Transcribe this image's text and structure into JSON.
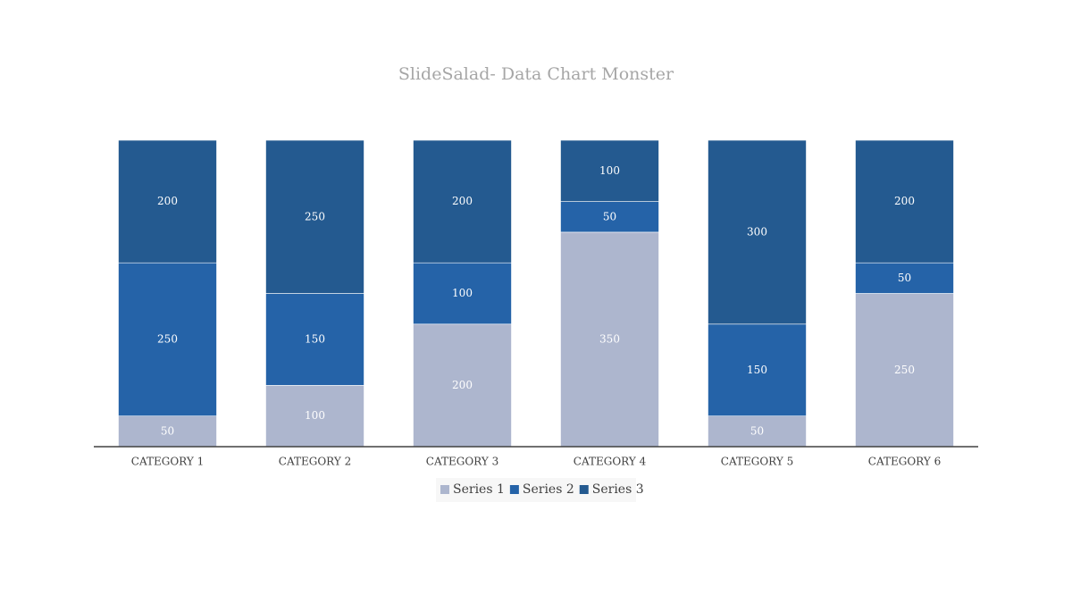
{
  "chart_data": {
    "type": "stacked_bar",
    "title": "SlideSalad- Data Chart Monster",
    "categories": [
      "CATEGORY 1",
      "CATEGORY 2",
      "CATEGORY 3",
      "CATEGORY 4",
      "CATEGORY 5",
      "CATEGORY 6"
    ],
    "series": [
      {
        "name": "Series 1",
        "color": "#adb6ce",
        "values": [
          50,
          100,
          200,
          350,
          50,
          250
        ]
      },
      {
        "name": "Series 2",
        "color": "#2563a8",
        "values": [
          250,
          150,
          100,
          50,
          150,
          50
        ]
      },
      {
        "name": "Series 3",
        "color": "#245a90",
        "values": [
          200,
          250,
          200,
          100,
          300,
          200
        ]
      }
    ],
    "ylim": [
      0,
      500
    ],
    "legend": "bottom"
  }
}
